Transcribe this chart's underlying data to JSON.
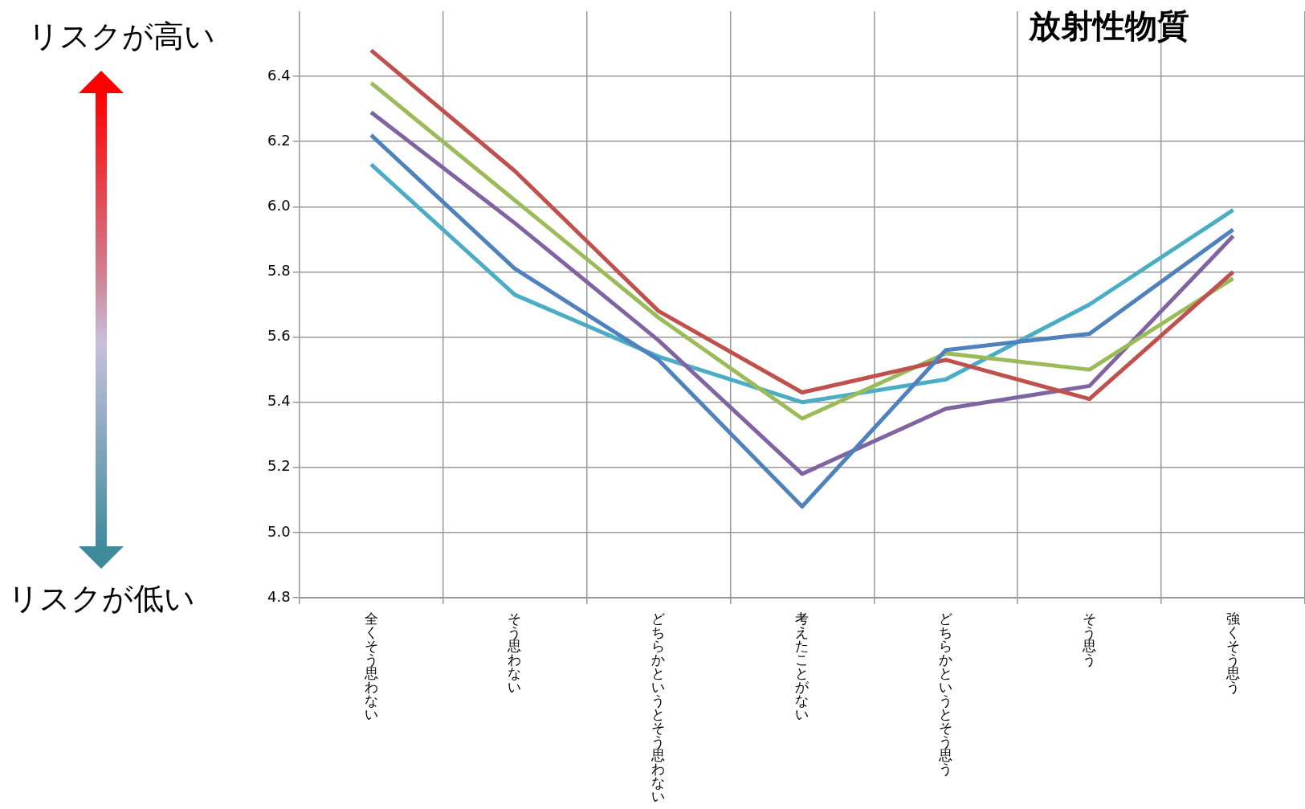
{
  "chart_data": {
    "type": "line",
    "title": "放射性物質",
    "categories": [
      "全くそう思わない",
      "そう思わない",
      "どちらかというとそう思わない",
      "考えたことがない",
      "どちらかというとそう思う",
      "そう思う",
      "強くそう思う"
    ],
    "series": [
      {
        "color": "#4f81bd",
        "values": [
          6.22,
          5.81,
          5.53,
          5.08,
          5.56,
          5.61,
          5.93
        ]
      },
      {
        "color": "#c0504d",
        "values": [
          6.48,
          6.11,
          5.68,
          5.43,
          5.53,
          5.41,
          5.8
        ]
      },
      {
        "color": "#9bbb59",
        "values": [
          6.38,
          6.02,
          5.66,
          5.35,
          5.55,
          5.5,
          5.78
        ]
      },
      {
        "color": "#8064a2",
        "values": [
          6.29,
          5.95,
          5.59,
          5.18,
          5.38,
          5.45,
          5.91
        ]
      },
      {
        "color": "#4bacc6",
        "values": [
          6.13,
          5.73,
          5.54,
          5.4,
          5.47,
          5.7,
          5.99
        ]
      }
    ],
    "ylim": [
      4.8,
      6.6
    ],
    "yticks": [
      4.8,
      {
        "value": 5,
        "label": "5.0"
      },
      5.2,
      5.4,
      5.6,
      5.8,
      {
        "value": 6,
        "label": "6.0"
      },
      6.2,
      6.4
    ],
    "grid": true,
    "legend": false,
    "marker": "none",
    "annotations": [
      "リスクが高い",
      "リスクが低い"
    ]
  }
}
